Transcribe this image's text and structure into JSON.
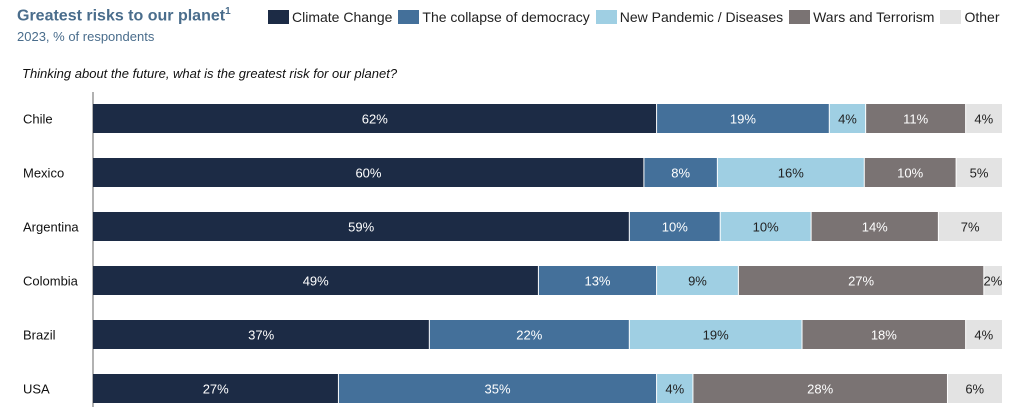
{
  "chart_data": {
    "type": "bar",
    "orientation": "horizontal-stacked",
    "title": "Greatest risks to our planet",
    "title_footnote": "1",
    "subtitle": "2023, % of respondents",
    "question": "Thinking about the future, what is the greatest risk for our planet?",
    "categories": [
      "Chile",
      "Mexico",
      "Argentina",
      "Colombia",
      "Brazil",
      "USA"
    ],
    "unit": "%",
    "xlim": [
      0,
      100
    ],
    "legend_position": "top",
    "series": [
      {
        "name": "Climate Change",
        "color": "#1c2b45",
        "label_color": "#ffffff",
        "values": [
          62,
          60,
          59,
          49,
          37,
          27
        ]
      },
      {
        "name": "The collapse of democracy",
        "color": "#44709a",
        "label_color": "#ffffff",
        "values": [
          19,
          8,
          10,
          13,
          22,
          35
        ]
      },
      {
        "name": "New Pandemic / Diseases",
        "color": "#9fcfe3",
        "label_color": "#222222",
        "values": [
          4,
          16,
          10,
          9,
          19,
          4
        ]
      },
      {
        "name": "Wars and Terrorism",
        "color": "#7a7373",
        "label_color": "#ffffff",
        "values": [
          11,
          10,
          14,
          27,
          18,
          28
        ]
      },
      {
        "name": "Other",
        "color": "#e3e3e3",
        "label_color": "#222222",
        "values": [
          4,
          5,
          7,
          2,
          4,
          6
        ]
      }
    ]
  }
}
